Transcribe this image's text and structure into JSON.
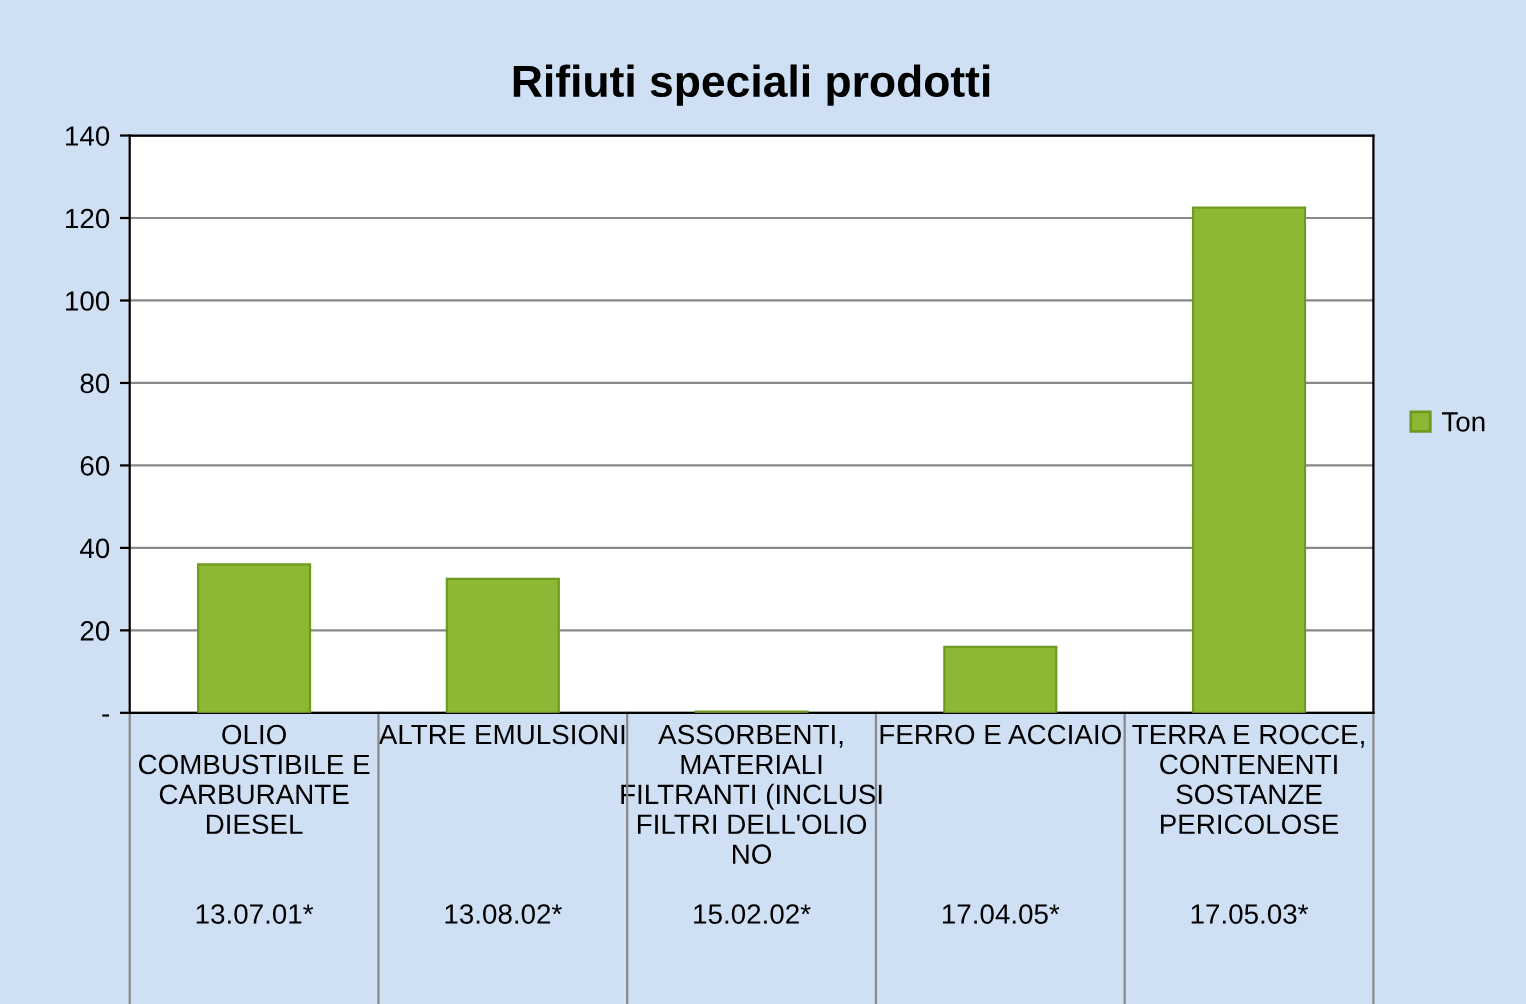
{
  "chart_data": {
    "type": "bar",
    "title": "Rifiuti speciali prodotti",
    "categories": [
      "OLIO\nCOMBUSTIBILE E\nCARBURANTE\nDIESEL\n\n\n13.07.01*",
      "ALTRE EMULSIONI\n\n\n\n\n\n13.08.02*",
      "ASSORBENTI,\nMATERIALI\nFILTRANTI (INCLUSI\nFILTRI DELL'OLIO\nNO\n\n15.02.02*",
      "FERRO E ACCIAIO\n\n\n\n\n\n17.04.05*",
      "TERRA E ROCCE,\nCONTENENTI\nSOSTANZE\nPERICOLOSE\n\n\n17.05.03*"
    ],
    "series": [
      {
        "name": "Ton",
        "color": "#8db833",
        "values": [
          36,
          32.5,
          0.3,
          16,
          122.5
        ]
      }
    ],
    "ylim": [
      0,
      140
    ],
    "yticks": [
      {
        "value": 0,
        "label": "-"
      },
      20,
      40,
      60,
      80,
      100,
      120,
      140
    ],
    "grid": "y",
    "legend": "right"
  }
}
